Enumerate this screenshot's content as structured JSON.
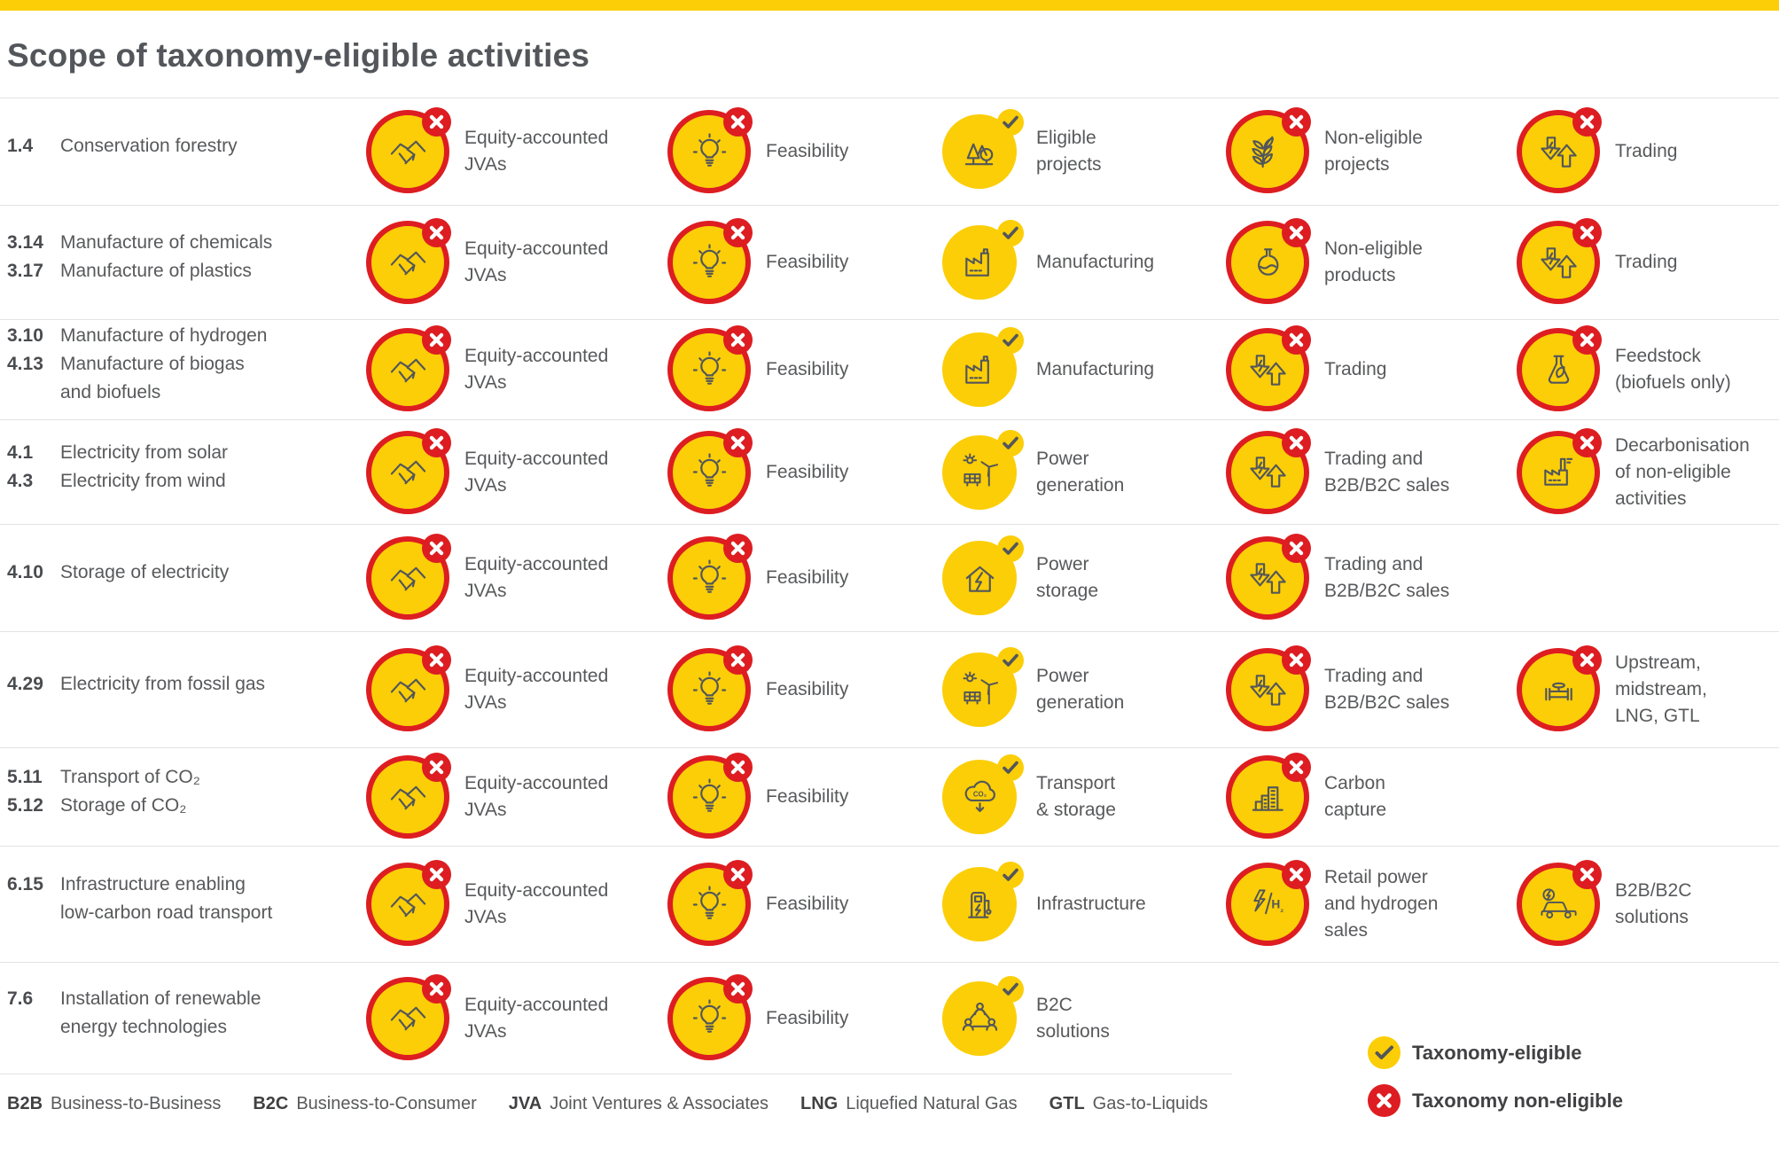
{
  "page": {
    "title": "Scope of taxonomy-eligible activities"
  },
  "colors": {
    "yellow": "#FBCE07",
    "red": "#DD1D21",
    "text_dark": "#53565A",
    "text_body": "#58595B",
    "divider": "#E3E3E3"
  },
  "legend": {
    "eligible_label": "Taxonomy-eligible",
    "non_eligible_label": "Taxonomy non-eligible"
  },
  "abbreviations": [
    {
      "abbr": "B2B",
      "definition": "Business-to-Business"
    },
    {
      "abbr": "B2C",
      "definition": "Business-to-Consumer"
    },
    {
      "abbr": "JVA",
      "definition": "Joint Ventures & Associates"
    },
    {
      "abbr": "LNG",
      "definition": "Liquefied Natural Gas"
    },
    {
      "abbr": "GTL",
      "definition": "Gas-to-Liquids"
    }
  ],
  "rows": [
    {
      "lines": [
        {
          "code": "1.4",
          "text": "Conservation forestry"
        }
      ],
      "cells": [
        {
          "col": 0,
          "status": "non-eligible",
          "icon": "handshake-icon",
          "label": "Equity-accounted\nJVAs"
        },
        {
          "col": 1,
          "status": "non-eligible",
          "icon": "lightbulb-icon",
          "label": "Feasibility"
        },
        {
          "col": 2,
          "status": "eligible",
          "icon": "trees-icon",
          "label": "Eligible\nprojects"
        },
        {
          "col": 3,
          "status": "non-eligible",
          "icon": "wheat-icon",
          "label": "Non-eligible\nprojects"
        },
        {
          "col": 4,
          "status": "non-eligible",
          "icon": "trading-arrows-icon",
          "label": "Trading"
        }
      ]
    },
    {
      "lines": [
        {
          "code": "3.14",
          "text": "Manufacture of chemicals"
        },
        {
          "code": "3.17",
          "text": "Manufacture of plastics"
        }
      ],
      "cells": [
        {
          "col": 0,
          "status": "non-eligible",
          "icon": "handshake-icon",
          "label": "Equity-accounted\nJVAs"
        },
        {
          "col": 1,
          "status": "non-eligible",
          "icon": "lightbulb-icon",
          "label": "Feasibility"
        },
        {
          "col": 2,
          "status": "eligible",
          "icon": "factory-icon",
          "label": "Manufacturing"
        },
        {
          "col": 3,
          "status": "non-eligible",
          "icon": "round-flask-icon",
          "label": "Non-eligible\nproducts"
        },
        {
          "col": 4,
          "status": "non-eligible",
          "icon": "trading-arrows-icon",
          "label": "Trading"
        }
      ]
    },
    {
      "lines": [
        {
          "code": "3.10",
          "text": "Manufacture of hydrogen"
        },
        {
          "code": "4.13",
          "text": "Manufacture of biogas"
        },
        {
          "code": "",
          "text": "and biofuels"
        }
      ],
      "cells": [
        {
          "col": 0,
          "status": "non-eligible",
          "icon": "handshake-icon",
          "label": "Equity-accounted\nJVAs"
        },
        {
          "col": 1,
          "status": "non-eligible",
          "icon": "lightbulb-icon",
          "label": "Feasibility"
        },
        {
          "col": 2,
          "status": "eligible",
          "icon": "factory-icon",
          "label": "Manufacturing"
        },
        {
          "col": 3,
          "status": "non-eligible",
          "icon": "trading-arrows-icon",
          "label": "Trading"
        },
        {
          "col": 4,
          "status": "non-eligible",
          "icon": "leaf-flask-icon",
          "label": "Feedstock\n(biofuels only)"
        }
      ]
    },
    {
      "lines": [
        {
          "code": "4.1",
          "text": "Electricity from solar"
        },
        {
          "code": "4.3",
          "text": "Electricity from wind"
        }
      ],
      "cells": [
        {
          "col": 0,
          "status": "non-eligible",
          "icon": "handshake-icon",
          "label": "Equity-accounted\nJVAs"
        },
        {
          "col": 1,
          "status": "non-eligible",
          "icon": "lightbulb-icon",
          "label": "Feasibility"
        },
        {
          "col": 2,
          "status": "eligible",
          "icon": "solar-wind-icon",
          "label": "Power\ngeneration"
        },
        {
          "col": 3,
          "status": "non-eligible",
          "icon": "trading-arrows-icon",
          "label": "Trading and\nB2B/B2C sales"
        },
        {
          "col": 4,
          "status": "non-eligible",
          "icon": "smoke-factory-icon",
          "label": "Decarbonisation\nof non-eligible\nactivities"
        }
      ]
    },
    {
      "lines": [
        {
          "code": "4.10",
          "text": "Storage of electricity"
        }
      ],
      "cells": [
        {
          "col": 0,
          "status": "non-eligible",
          "icon": "handshake-icon",
          "label": "Equity-accounted\nJVAs"
        },
        {
          "col": 1,
          "status": "non-eligible",
          "icon": "lightbulb-icon",
          "label": "Feasibility"
        },
        {
          "col": 2,
          "status": "eligible",
          "icon": "house-bolt-icon",
          "label": "Power\nstorage"
        },
        {
          "col": 3,
          "status": "non-eligible",
          "icon": "trading-arrows-icon",
          "label": "Trading and\nB2B/B2C sales"
        }
      ]
    },
    {
      "lines": [
        {
          "code": "4.29",
          "text": "Electricity from fossil gas"
        }
      ],
      "cells": [
        {
          "col": 0,
          "status": "non-eligible",
          "icon": "handshake-icon",
          "label": "Equity-accounted\nJVAs"
        },
        {
          "col": 1,
          "status": "non-eligible",
          "icon": "lightbulb-icon",
          "label": "Feasibility"
        },
        {
          "col": 2,
          "status": "eligible",
          "icon": "solar-wind-icon",
          "label": "Power\ngeneration"
        },
        {
          "col": 3,
          "status": "non-eligible",
          "icon": "trading-arrows-icon",
          "label": "Trading and\nB2B/B2C sales"
        },
        {
          "col": 4,
          "status": "non-eligible",
          "icon": "pipeline-valve-icon",
          "label": "Upstream,\nmidstream,\nLNG, GTL"
        }
      ]
    },
    {
      "lines": [
        {
          "code": "5.11",
          "text": "Transport of CO₂"
        },
        {
          "code": "5.12",
          "text": "Storage of CO₂"
        }
      ],
      "cells": [
        {
          "col": 0,
          "status": "non-eligible",
          "icon": "handshake-icon",
          "label": "Equity-accounted\nJVAs"
        },
        {
          "col": 1,
          "status": "non-eligible",
          "icon": "lightbulb-icon",
          "label": "Feasibility"
        },
        {
          "col": 2,
          "status": "eligible",
          "icon": "co2-cloud-icon",
          "label": "Transport\n& storage"
        },
        {
          "col": 3,
          "status": "non-eligible",
          "icon": "buildings-icon",
          "label": "Carbon\ncapture"
        }
      ]
    },
    {
      "lines": [
        {
          "code": "6.15",
          "text": "Infrastructure enabling"
        },
        {
          "code": "",
          "text": "low-carbon road transport"
        }
      ],
      "cells": [
        {
          "col": 0,
          "status": "non-eligible",
          "icon": "handshake-icon",
          "label": "Equity-accounted\nJVAs"
        },
        {
          "col": 1,
          "status": "non-eligible",
          "icon": "lightbulb-icon",
          "label": "Feasibility"
        },
        {
          "col": 2,
          "status": "eligible",
          "icon": "ev-charger-icon",
          "label": "Infrastructure"
        },
        {
          "col": 3,
          "status": "non-eligible",
          "icon": "bolt-h2-icon",
          "label": "Retail power\nand hydrogen\nsales"
        },
        {
          "col": 4,
          "status": "non-eligible",
          "icon": "car-bolt-icon",
          "label": "B2B/B2C\nsolutions"
        }
      ]
    },
    {
      "lines": [
        {
          "code": "7.6",
          "text": "Installation of renewable"
        },
        {
          "code": "",
          "text": "energy technologies"
        }
      ],
      "cells": [
        {
          "col": 0,
          "status": "non-eligible",
          "icon": "handshake-icon",
          "label": "Equity-accounted\nJVAs"
        },
        {
          "col": 1,
          "status": "non-eligible",
          "icon": "lightbulb-icon",
          "label": "Feasibility"
        },
        {
          "col": 2,
          "status": "eligible",
          "icon": "people-network-icon",
          "label": "B2C\nsolutions"
        }
      ]
    }
  ]
}
